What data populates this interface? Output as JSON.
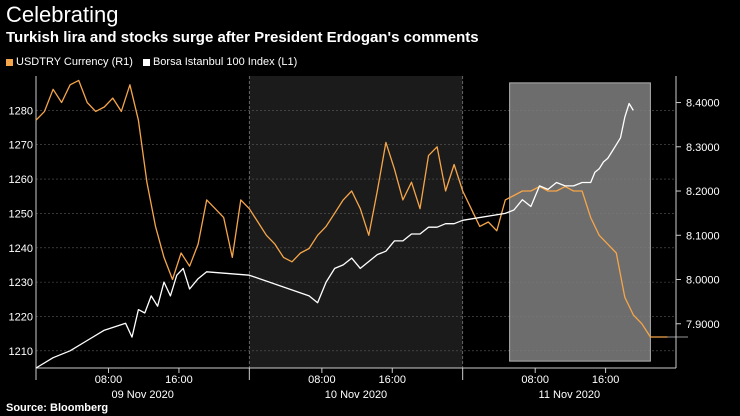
{
  "header": {
    "title": "Celebrating",
    "subtitle": "Turkish lira and stocks surge after President Erdogan's comments"
  },
  "footer": {
    "source": "Source: Bloomberg"
  },
  "colors": {
    "usd": "#f5a54a",
    "bist": "#ffffff",
    "shade": "#1b1b1b",
    "highlight": "#808080",
    "grid": "#5a5a5a"
  },
  "chart_data": {
    "type": "line",
    "title": "Celebrating",
    "subtitle": "Turkish lira and stocks surge after President Erdogan's comments",
    "legend_position": "top-left",
    "y_left": {
      "ticks": [
        1210,
        1220,
        1230,
        1240,
        1250,
        1260,
        1270,
        1280
      ],
      "labels": [
        "1210",
        "1220",
        "1230",
        "1240",
        "1250",
        "1260",
        "1270",
        "1280"
      ],
      "range": [
        1205,
        1290
      ]
    },
    "y_right": {
      "ticks": [
        7.9,
        8.0,
        8.1,
        8.2,
        8.3,
        8.4
      ],
      "labels": [
        "7.9000",
        "8.0000",
        "8.1000",
        "8.2000",
        "8.3000",
        "8.4000"
      ],
      "range": [
        7.8,
        8.46
      ]
    },
    "x_range": [
      0,
      3.0
    ],
    "x_ticks": [
      {
        "x": 0.34,
        "label": "08:00"
      },
      {
        "x": 0.67,
        "label": "16:00"
      },
      {
        "x": 1.34,
        "label": "08:00"
      },
      {
        "x": 1.67,
        "label": "16:00"
      },
      {
        "x": 2.34,
        "label": "08:00"
      },
      {
        "x": 2.67,
        "label": "16:00"
      }
    ],
    "day_labels": [
      {
        "x": 0.5,
        "label": "09 Nov 2020"
      },
      {
        "x": 1.5,
        "label": "10 Nov 2020"
      },
      {
        "x": 2.5,
        "label": "11 Nov 2020"
      }
    ],
    "day_boundaries": [
      1.0,
      2.0
    ],
    "shaded_day": [
      1.0,
      2.0
    ],
    "highlight": [
      2.22,
      2.88
    ],
    "highlight_value_range": [
      1207,
      1288
    ],
    "series": [
      {
        "name": "USDTRY Currency (R1)",
        "axis": "right",
        "color": "#f5a54a",
        "x": [
          0.0,
          0.04,
          0.08,
          0.12,
          0.16,
          0.2,
          0.24,
          0.28,
          0.32,
          0.36,
          0.4,
          0.44,
          0.48,
          0.52,
          0.56,
          0.6,
          0.64,
          0.68,
          0.72,
          0.76,
          0.8,
          0.84,
          0.88,
          0.92,
          0.96,
          1.0,
          1.04,
          1.08,
          1.12,
          1.16,
          1.2,
          1.24,
          1.28,
          1.32,
          1.36,
          1.4,
          1.44,
          1.48,
          1.52,
          1.56,
          1.6,
          1.64,
          1.68,
          1.72,
          1.76,
          1.8,
          1.84,
          1.88,
          1.92,
          1.96,
          2.0,
          2.04,
          2.08,
          2.12,
          2.16,
          2.2,
          2.24,
          2.28,
          2.32,
          2.36,
          2.4,
          2.44,
          2.48,
          2.52,
          2.56,
          2.6,
          2.64,
          2.68,
          2.72,
          2.76,
          2.8,
          2.84,
          2.88,
          2.96
        ],
        "values": [
          8.36,
          8.38,
          8.43,
          8.4,
          8.44,
          8.45,
          8.4,
          8.38,
          8.39,
          8.41,
          8.38,
          8.44,
          8.36,
          8.22,
          8.12,
          8.05,
          8.0,
          8.06,
          8.03,
          8.08,
          8.18,
          8.16,
          8.14,
          8.05,
          8.18,
          8.16,
          8.13,
          8.1,
          8.08,
          8.05,
          8.04,
          8.06,
          8.07,
          8.1,
          8.12,
          8.15,
          8.18,
          8.2,
          8.16,
          8.1,
          8.2,
          8.31,
          8.25,
          8.18,
          8.22,
          8.16,
          8.28,
          8.3,
          8.2,
          8.26,
          8.2,
          8.16,
          8.12,
          8.13,
          8.11,
          8.18,
          8.19,
          8.2,
          8.2,
          8.21,
          8.2,
          8.2,
          8.21,
          8.2,
          8.2,
          8.14,
          8.1,
          8.08,
          8.06,
          7.96,
          7.92,
          7.9,
          7.87,
          7.87
        ]
      },
      {
        "name": "Borsa Istanbul 100 Index (L1)",
        "axis": "left",
        "color": "#ffffff",
        "x": [
          0.0,
          0.08,
          0.16,
          0.24,
          0.32,
          0.42,
          0.45,
          0.48,
          0.51,
          0.54,
          0.57,
          0.6,
          0.63,
          0.66,
          0.69,
          0.72,
          0.76,
          0.8,
          1.0,
          1.28,
          1.32,
          1.36,
          1.4,
          1.44,
          1.48,
          1.52,
          1.56,
          1.6,
          1.64,
          1.68,
          1.72,
          1.76,
          1.8,
          1.84,
          1.88,
          1.92,
          1.96,
          2.0,
          2.2,
          2.24,
          2.28,
          2.32,
          2.36,
          2.4,
          2.44,
          2.48,
          2.52,
          2.56,
          2.6,
          2.62,
          2.64,
          2.66,
          2.68,
          2.7,
          2.72,
          2.74,
          2.76,
          2.78,
          2.8
        ],
        "values": [
          1205,
          1208,
          1210,
          1213,
          1216,
          1218,
          1214,
          1222,
          1221,
          1226,
          1223,
          1230,
          1226,
          1232,
          1234,
          1228,
          1231,
          1233,
          1232,
          1226,
          1224,
          1230,
          1234,
          1235,
          1237,
          1234,
          1236,
          1238,
          1239,
          1242,
          1242,
          1244,
          1244,
          1246,
          1246,
          1247,
          1247,
          1248,
          1250,
          1251,
          1254,
          1252,
          1258,
          1257,
          1259,
          1258,
          1258,
          1259,
          1259,
          1262,
          1263,
          1265,
          1266,
          1268,
          1270,
          1272,
          1278,
          1282,
          1280
        ]
      }
    ]
  }
}
